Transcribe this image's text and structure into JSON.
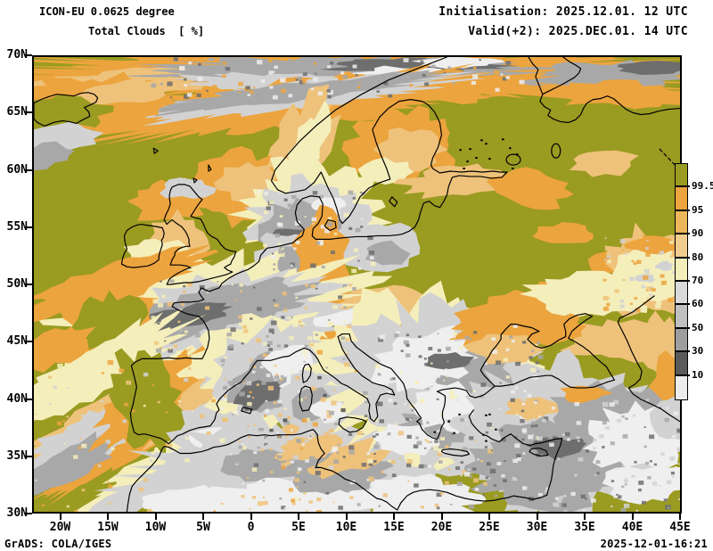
{
  "header": {
    "model_line": "ICON-EU 0.0625 degree",
    "variable_line": "Total Clouds  [ %]",
    "init_line": "Initialisation: 2025.12.01. 12 UTC",
    "valid_line": "Valid(+2): 2025.DEC.01. 14 UTC"
  },
  "axes": {
    "lat_labels": [
      "70N",
      "65N",
      "60N",
      "55N",
      "50N",
      "45N",
      "40N",
      "35N",
      "30N"
    ],
    "lon_labels": [
      "20W",
      "15W",
      "10W",
      "5W",
      "0",
      "5E",
      "10E",
      "15E",
      "20E",
      "25E",
      "30E",
      "35E",
      "40E",
      "45E"
    ]
  },
  "colorbar": {
    "unit": "%",
    "tick_labels": [
      "99.5",
      "95",
      "90",
      "80",
      "70",
      "60",
      "50",
      "30",
      "10"
    ],
    "segment_colors_top_to_bottom": [
      "#9a9b21",
      "#eca43e",
      "#ecb65a",
      "#f0cd8e",
      "#f4eebb",
      "#d9d9d9",
      "#c0c0c0",
      "#9e9e9e",
      "#5a5a5a",
      "#ececec"
    ]
  },
  "footer": {
    "left": "GrADS: COLA/IGES",
    "right": "2025-12-01-16:21"
  },
  "palette": {
    "background": "#ffffff",
    "frame": "#000000",
    "coast": "#000000",
    "olive": "#9a9b21",
    "orange": "#eca43e",
    "tan": "#eec27a",
    "pale": "#f4eebb",
    "lgray": "#d2d2d2",
    "mgray": "#a8a8a8",
    "dgray": "#6e6e6e",
    "ddgray": "#4f4f4f",
    "white": "#efefef"
  }
}
